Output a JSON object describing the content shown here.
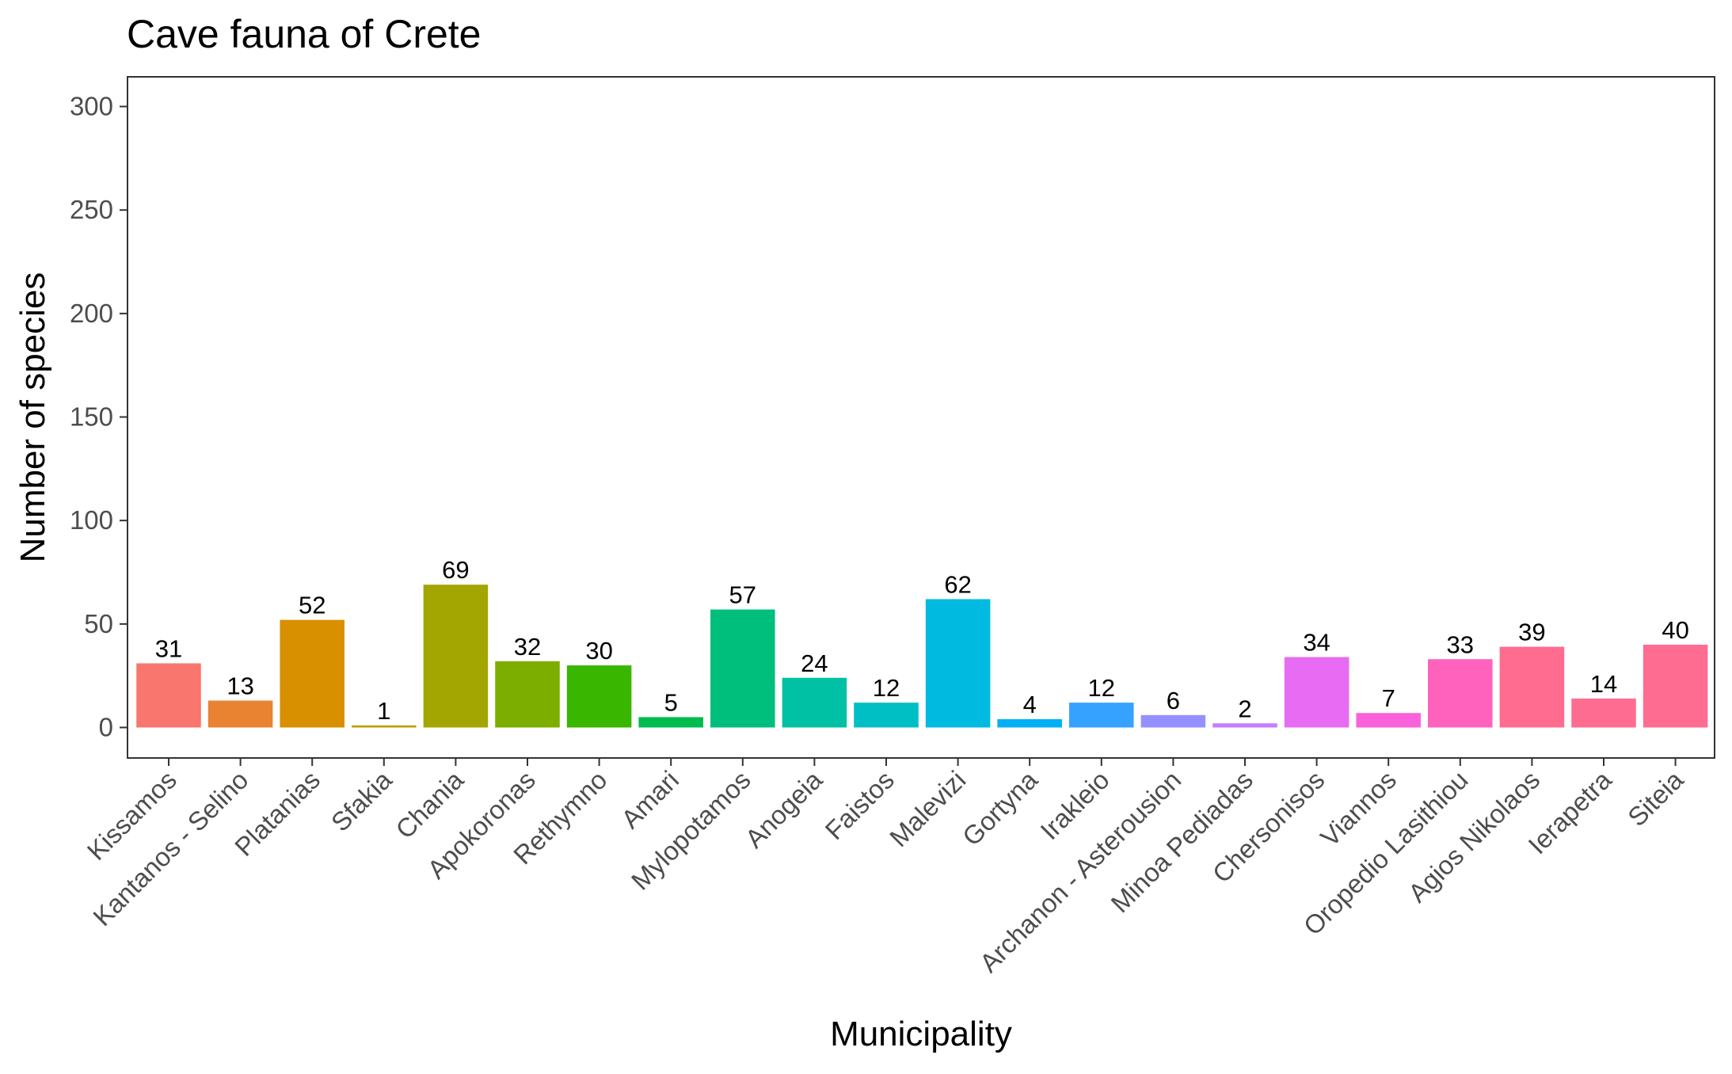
{
  "chart_data": {
    "type": "bar",
    "title": "Cave fauna of Crete",
    "xlabel": "Municipality",
    "ylabel": "Number of species",
    "categories": [
      "Kissamos",
      "Kantanos - Selino",
      "Platanias",
      "Sfakia",
      "Chania",
      "Apokoronas",
      "Rethymno",
      "Amari",
      "Mylopotamos",
      "Anogeia",
      "Faistos",
      "Malevizi",
      "Gortyna",
      "Irakleio",
      "Archanon - Asterousion",
      "Minoa Pediadas",
      "Chersonisos",
      "Viannos",
      "Oropedio Lasithiou",
      "Agios Nikolaos",
      "Ierapetra",
      "Siteia"
    ],
    "values": [
      31,
      13,
      52,
      1,
      69,
      32,
      30,
      5,
      57,
      24,
      12,
      62,
      4,
      12,
      6,
      2,
      34,
      7,
      33,
      39,
      14,
      40
    ],
    "data_labels": [
      "31",
      "13",
      "52",
      "1",
      "69",
      "32",
      "30",
      "5",
      "57",
      "24",
      "12",
      "62",
      "4",
      "12",
      "6",
      "2",
      "34",
      "7",
      "33",
      "39",
      "14",
      "40"
    ],
    "colors": [
      "#F8766D",
      "#EA8331",
      "#D89000",
      "#C09B00",
      "#A3A500",
      "#7CAE00",
      "#39B600",
      "#00BB4E",
      "#00BF7D",
      "#00C1A3",
      "#00BFC4",
      "#00BAE0",
      "#00B0F6",
      "#35A2FF",
      "#9590FF",
      "#C77CFF",
      "#E76BF3",
      "#FA62DB",
      "#FF62BC",
      "#FF6C90",
      "#FF6C91",
      "#FF6C91"
    ],
    "ylim": [
      0,
      310
    ],
    "yticks": [
      0,
      50,
      100,
      150,
      200,
      250,
      300
    ],
    "ytick_labels": [
      "0",
      "50",
      "100",
      "150",
      "200",
      "250",
      "300"
    ],
    "grid": false,
    "legend": "none"
  }
}
